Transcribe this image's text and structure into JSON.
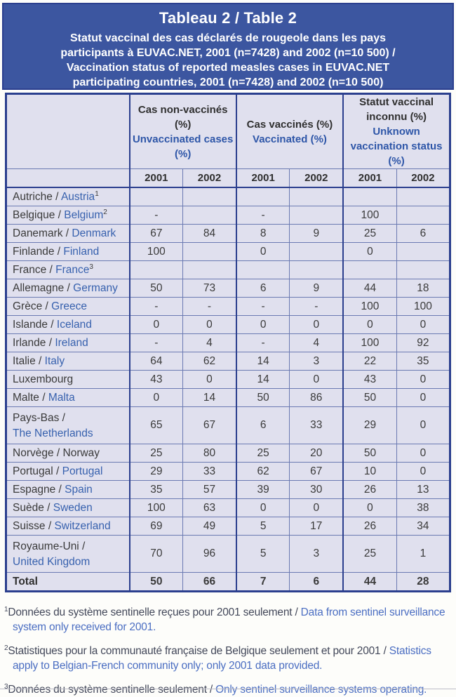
{
  "colors": {
    "band_bg": "#3c56a0",
    "band_border": "#2b3f8e",
    "table_bg": "#e0e0ee",
    "grid_line": "#6b7ab2",
    "thick_border": "#2b3f8e",
    "dark_text": "#3a3a3a",
    "blue_text": "#2e56a8",
    "footnote_fr": "#43485a",
    "footnote_en": "#4b6ec2"
  },
  "title_band": {
    "title": "Tableau 2 / Table 2",
    "subtitle_lines": [
      "Statut vaccinal des cas déclarés de rougeole dans les pays",
      "participants à EUVAC.NET, 2001 (n=7428) and 2002 (n=10 500) /",
      "Vaccination status of reported measles cases in EUVAC.NET",
      "participating countries, 2001 (n=7428) and 2002 (n=10 500)"
    ]
  },
  "table": {
    "groups": [
      {
        "fr": "Cas non-vaccinés (%)",
        "en": "Unvaccinated cases (%)"
      },
      {
        "fr": "Cas vaccinés (%)",
        "en": "Vaccinated (%)"
      },
      {
        "fr": "Statut vaccinal inconnu (%)",
        "en": "Unknown vaccination status (%)"
      }
    ],
    "years": [
      "2001",
      "2002",
      "2001",
      "2002",
      "2001",
      "2002"
    ],
    "rows": [
      {
        "fr": "Autriche / ",
        "en": "Austria",
        "sup": "1",
        "values": [
          "",
          "",
          "",
          "",
          "",
          ""
        ]
      },
      {
        "fr": "Belgique / ",
        "en": "Belgium",
        "sup": "2",
        "values": [
          "-",
          "",
          "-",
          "",
          "100",
          ""
        ]
      },
      {
        "fr": "Danemark / ",
        "en": "Denmark",
        "values": [
          "67",
          "84",
          "8",
          "9",
          "25",
          "6"
        ]
      },
      {
        "fr": "Finlande / ",
        "en": "Finland",
        "values": [
          "100",
          "",
          "0",
          "",
          "0",
          ""
        ]
      },
      {
        "fr": "France / ",
        "en": "France",
        "sup": "3",
        "values": [
          "",
          "",
          "",
          "",
          "",
          ""
        ]
      },
      {
        "fr": "Allemagne / ",
        "en": "Germany",
        "values": [
          "50",
          "73",
          "6",
          "9",
          "44",
          "18"
        ]
      },
      {
        "fr": "Grèce / ",
        "en": "Greece",
        "values": [
          "-",
          "-",
          "-",
          "-",
          "100",
          "100"
        ]
      },
      {
        "fr": "Islande / ",
        "en": "Iceland",
        "values": [
          "0",
          "0",
          "0",
          "0",
          "0",
          "0"
        ]
      },
      {
        "fr": "Irlande / ",
        "en": "Ireland",
        "values": [
          "-",
          "4",
          "-",
          "4",
          "100",
          "92"
        ]
      },
      {
        "fr": "Italie  / ",
        "en": "Italy",
        "values": [
          "64",
          "62",
          "14",
          "3",
          "22",
          "35"
        ]
      },
      {
        "fr": "Luxembourg",
        "en": "",
        "values": [
          "43",
          "0",
          "14",
          "0",
          "43",
          "0"
        ]
      },
      {
        "fr": "Malte / ",
        "en": "Malta",
        "values": [
          "0",
          "14",
          "50",
          "86",
          "50",
          "0"
        ]
      },
      {
        "fr": "Pays-Bas /",
        "en": "The Netherlands",
        "two_line": true,
        "values": [
          "65",
          "67",
          "6",
          "33",
          "29",
          "0"
        ]
      },
      {
        "fr": "Norvège / Norway",
        "en": "",
        "values": [
          "25",
          "80",
          "25",
          "20",
          "50",
          "0"
        ]
      },
      {
        "fr": "Portugal / ",
        "en": "Portugal",
        "values": [
          "29",
          "33",
          "62",
          "67",
          "10",
          "0"
        ]
      },
      {
        "fr": "Espagne / ",
        "en": "Spain",
        "values": [
          "35",
          "57",
          "39",
          "30",
          "26",
          "13"
        ]
      },
      {
        "fr": "Suède / ",
        "en": "Sweden",
        "values": [
          "100",
          "63",
          "0",
          "0",
          "0",
          "38"
        ]
      },
      {
        "fr": "Suisse / ",
        "en": "Switzerland",
        "values": [
          "69",
          "49",
          "5",
          "17",
          "26",
          "34"
        ]
      },
      {
        "fr": "Royaume-Uni /",
        "en": "United Kingdom",
        "two_line": true,
        "values": [
          "70",
          "96",
          "5",
          "3",
          "25",
          "1"
        ]
      }
    ],
    "total": {
      "label": "Total",
      "values": [
        "50",
        "66",
        "7",
        "6",
        "44",
        "28"
      ]
    }
  },
  "footnotes": [
    {
      "sup": "1",
      "fr": "Données du système sentinelle reçues pour 2001 seulement / ",
      "en": "Data from sentinel surveillance system only received for 2001."
    },
    {
      "sup": "2",
      "fr": "Statistiques pour la communauté française de Belgique seulement et pour 2001 / ",
      "en": "Statistics apply to Belgian-French community only; only 2001 data provided."
    },
    {
      "sup": "3",
      "fr": "Données du système sentinelle seulement / ",
      "en": "Only sentinel surveillance systems operating."
    }
  ]
}
